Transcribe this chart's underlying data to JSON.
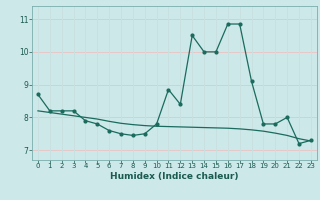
{
  "x": [
    0,
    1,
    2,
    3,
    4,
    5,
    6,
    7,
    8,
    9,
    10,
    11,
    12,
    13,
    14,
    15,
    16,
    17,
    18,
    19,
    20,
    21,
    22,
    23
  ],
  "y_main": [
    8.7,
    8.2,
    8.2,
    8.2,
    7.9,
    7.8,
    7.6,
    7.5,
    7.45,
    7.5,
    7.8,
    8.85,
    8.4,
    10.5,
    10.0,
    10.0,
    10.85,
    10.85,
    9.1,
    7.8,
    7.8,
    8.0,
    7.2,
    7.3
  ],
  "y_trend": [
    8.2,
    8.15,
    8.1,
    8.05,
    8.0,
    7.95,
    7.88,
    7.82,
    7.78,
    7.75,
    7.73,
    7.72,
    7.71,
    7.7,
    7.69,
    7.68,
    7.67,
    7.65,
    7.62,
    7.58,
    7.52,
    7.45,
    7.35,
    7.28
  ],
  "line_color": "#1a6b5e",
  "bg_color": "#cce8e8",
  "grid_color_h": "#e8c8c8",
  "grid_color_v": "#c8e0e0",
  "xlabel": "Humidex (Indice chaleur)",
  "xlim": [
    -0.5,
    23.5
  ],
  "ylim": [
    6.7,
    11.4
  ],
  "yticks": [
    7,
    8,
    9,
    10,
    11
  ],
  "xticks": [
    0,
    1,
    2,
    3,
    4,
    5,
    6,
    7,
    8,
    9,
    10,
    11,
    12,
    13,
    14,
    15,
    16,
    17,
    18,
    19,
    20,
    21,
    22,
    23
  ]
}
